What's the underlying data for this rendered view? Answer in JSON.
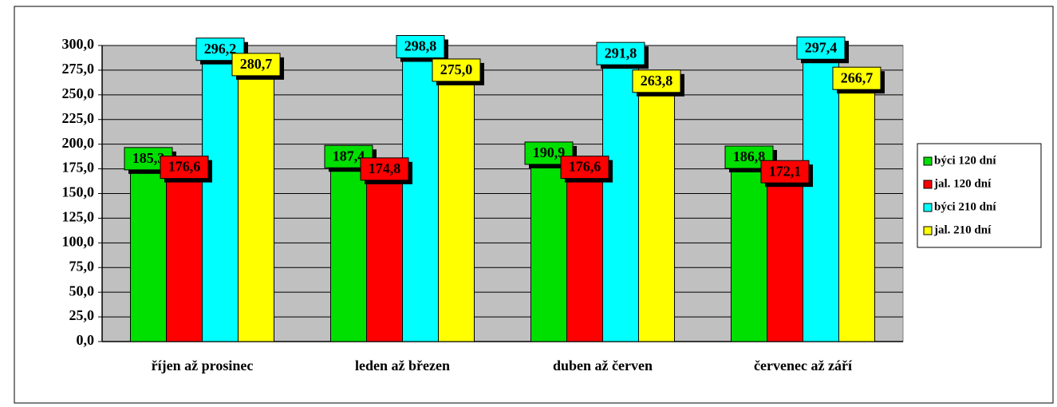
{
  "chart_data": {
    "type": "bar",
    "categories": [
      "říjen až prosinec",
      "leden až březen",
      "duben až červen",
      "červenec až září"
    ],
    "series": [
      {
        "name": "býci 120 dní",
        "color": "#00e000",
        "values": [
          185.3,
          187.4,
          190.9,
          186.8
        ],
        "value_labels": [
          "185,3",
          "187,4",
          "190,9",
          "186,8"
        ]
      },
      {
        "name": "jal. 120 dní",
        "color": "#ff0000",
        "values": [
          176.6,
          174.8,
          176.6,
          172.1
        ],
        "value_labels": [
          "176,6",
          "174,8",
          "176,6",
          "172,1"
        ]
      },
      {
        "name": "býci 210 dní",
        "color": "#00ffff",
        "values": [
          296.2,
          298.8,
          291.8,
          297.4
        ],
        "value_labels": [
          "296,2",
          "298,8",
          "291,8",
          "297,4"
        ]
      },
      {
        "name": "jal. 210 dní",
        "color": "#ffff00",
        "values": [
          280.7,
          275.0,
          263.8,
          266.7
        ],
        "value_labels": [
          "280,7",
          "275,0",
          "263,8",
          "266,7"
        ]
      }
    ],
    "ylim": [
      0,
      300
    ],
    "yticks": [
      {
        "value": 0,
        "label": "0,0"
      },
      {
        "value": 25,
        "label": "25,0"
      },
      {
        "value": 50,
        "label": "50,0"
      },
      {
        "value": 75,
        "label": "75,0"
      },
      {
        "value": 100,
        "label": "100,0"
      },
      {
        "value": 125,
        "label": "125,0"
      },
      {
        "value": 150,
        "label": "150,0"
      },
      {
        "value": 175,
        "label": "175,0"
      },
      {
        "value": 200,
        "label": "200,0"
      },
      {
        "value": 225,
        "label": "225,0"
      },
      {
        "value": 250,
        "label": "250,0"
      },
      {
        "value": 275,
        "label": "275,0"
      },
      {
        "value": 300,
        "label": "300,0"
      }
    ],
    "grid": true,
    "plot_background": "#c0c0c0",
    "legend": "right"
  }
}
